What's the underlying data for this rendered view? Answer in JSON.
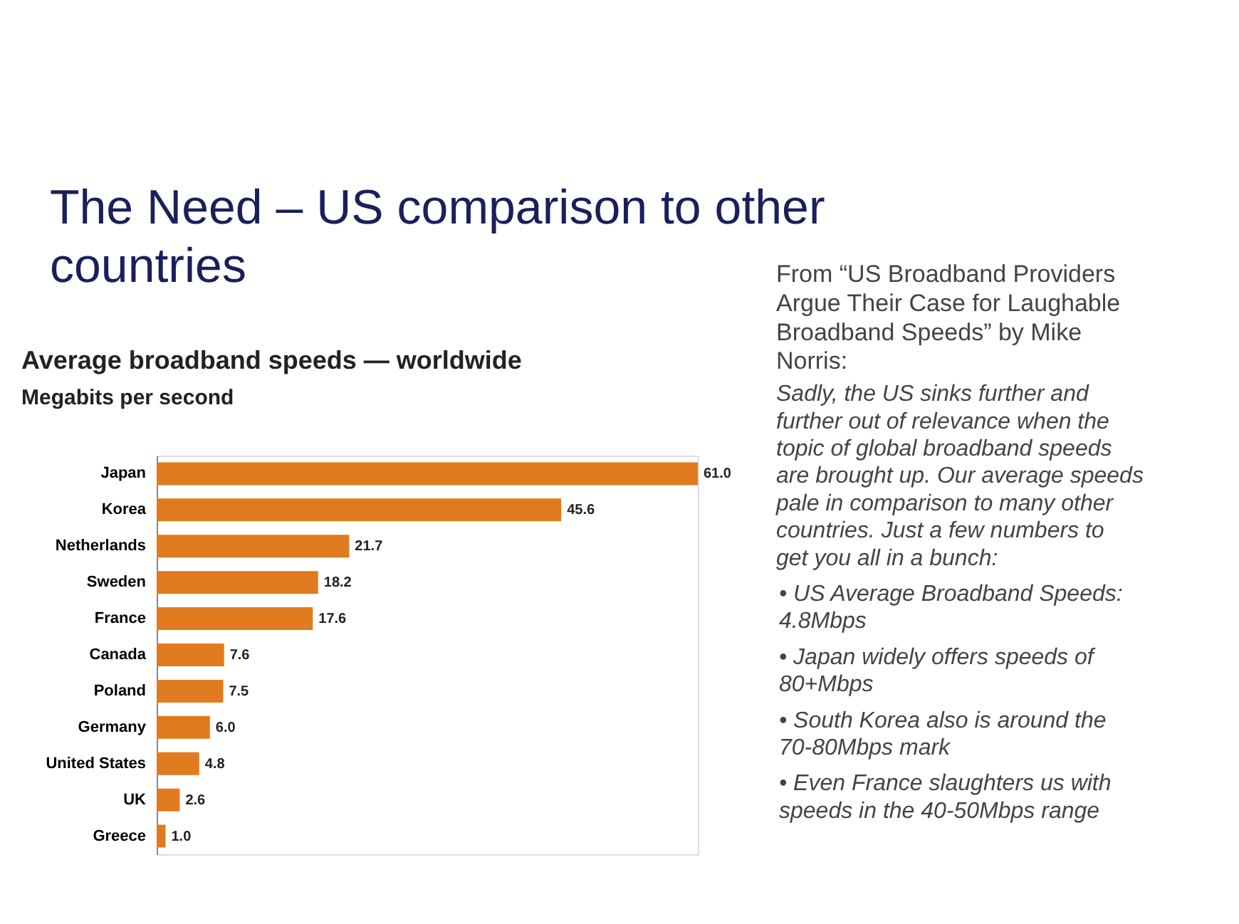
{
  "chart_data": {
    "type": "bar",
    "orientation": "horizontal",
    "title": "Average broadband speeds — worldwide",
    "subtitle": "Megabits per second",
    "categories": [
      "Japan",
      "Korea",
      "Netherlands",
      "Sweden",
      "France",
      "Canada",
      "Poland",
      "Germany",
      "United States",
      "UK",
      "Greece"
    ],
    "values": [
      61.0,
      45.6,
      21.7,
      18.2,
      17.6,
      7.6,
      7.5,
      6.0,
      4.8,
      2.6,
      1.0
    ],
    "value_labels": [
      "61.0",
      "45.6",
      "21.7",
      "18.2",
      "17.6",
      "7.6",
      "7.5",
      "6.0",
      "4.8",
      "2.6",
      "1.0"
    ],
    "color": "#e07b1f",
    "grid": false,
    "tick_labels": "y",
    "annotations": [
      "The Need – US comparison to other countries",
      "From “US Broadband Providers Argue Their Case for Laughable Broadband Speeds” by Mike Norris:",
      "Sadly, the US sinks further and further out of relevance when the topic of global broadband speeds are brought up. Our average speeds pale in comparison to many other countries. Just a few numbers to get you all in a bunch:",
      "• US Average Broadband Speeds: 4.8Mbps",
      "• Japan widely offers speeds of 80+Mbps",
      "• South Korea also is around the 70-80Mbps mark",
      "• Even France slaughters us with speeds in the 40-50Mbps range"
    ]
  }
}
